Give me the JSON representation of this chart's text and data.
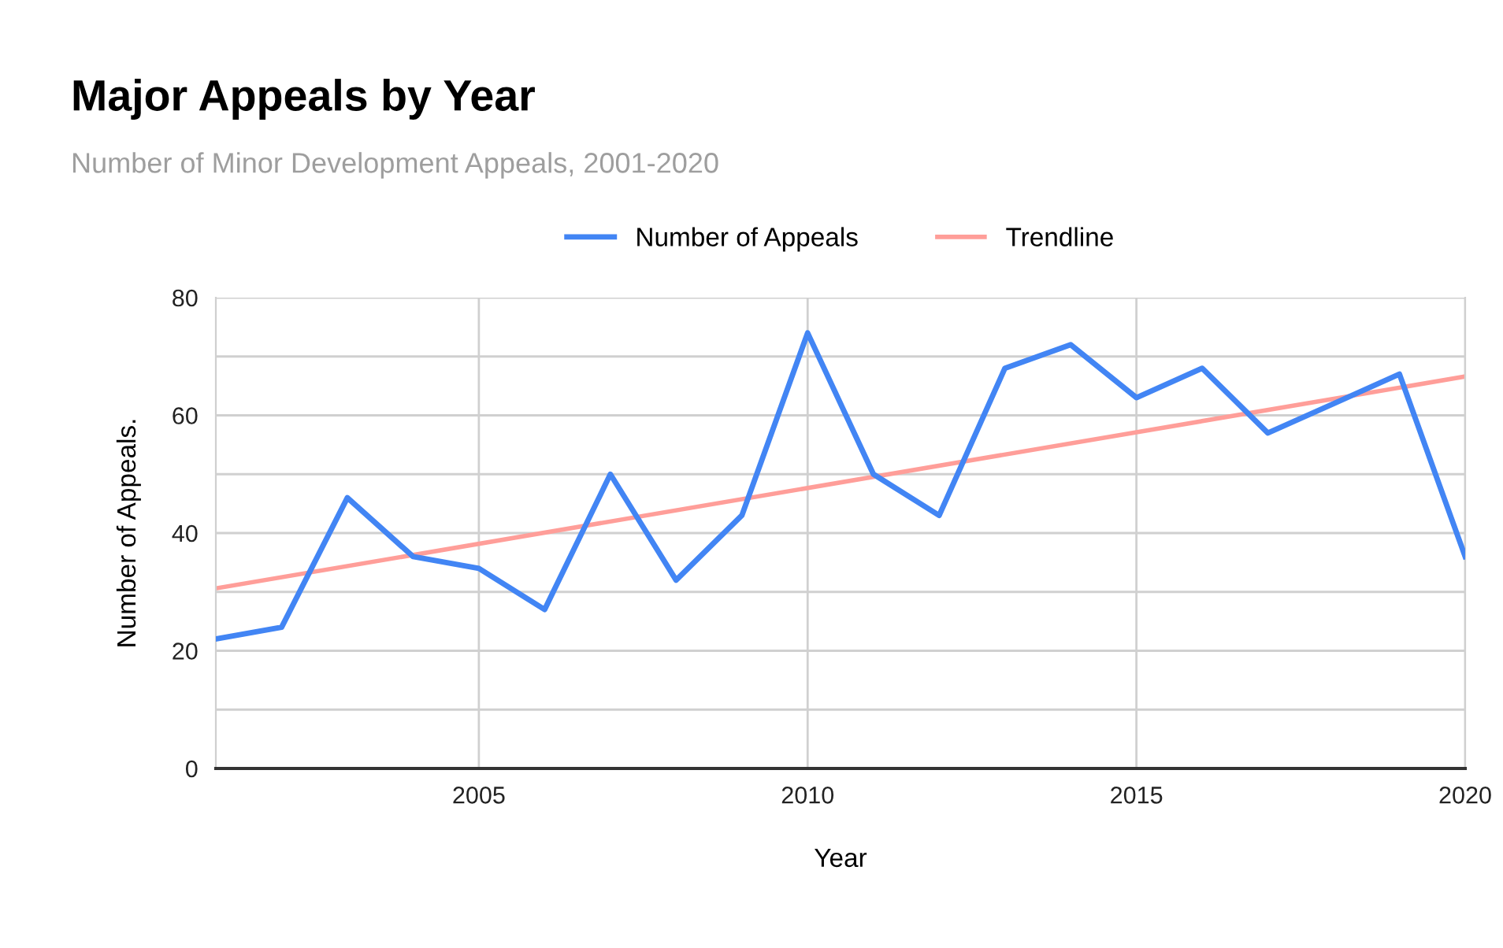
{
  "chart_data": {
    "type": "line",
    "title": "Major Appeals by Year",
    "subtitle": "Number of Minor Development Appeals, 2001-2020",
    "xlabel": "Year",
    "ylabel": "Number of Appeals.",
    "x": [
      2001,
      2002,
      2003,
      2004,
      2005,
      2006,
      2007,
      2008,
      2009,
      2010,
      2011,
      2012,
      2013,
      2014,
      2015,
      2016,
      2017,
      2018,
      2019,
      2020
    ],
    "series": [
      {
        "name": "Number of Appeals",
        "color": "#4285f4",
        "values": [
          22,
          24,
          46,
          36,
          34,
          27,
          50,
          32,
          43,
          74,
          50,
          43,
          68,
          72,
          63,
          68,
          57,
          62,
          67,
          36
        ]
      },
      {
        "name": "Trendline",
        "color": "#ff9e99",
        "x": [
          2001,
          2020
        ],
        "values": [
          30.6,
          66.6
        ]
      }
    ],
    "xlim": [
      2001,
      2020
    ],
    "xticks": [
      2005,
      2010,
      2015,
      2020
    ],
    "ylim": [
      0,
      80
    ],
    "yticks": [
      0,
      {
        "value": 10,
        "label": null
      },
      20,
      {
        "value": 30,
        "label": null
      },
      40,
      {
        "value": 50,
        "label": null
      },
      60,
      {
        "value": 70,
        "label": null
      },
      80
    ],
    "grid": true,
    "legend": "top",
    "marker": "none",
    "line_style": "solid"
  }
}
